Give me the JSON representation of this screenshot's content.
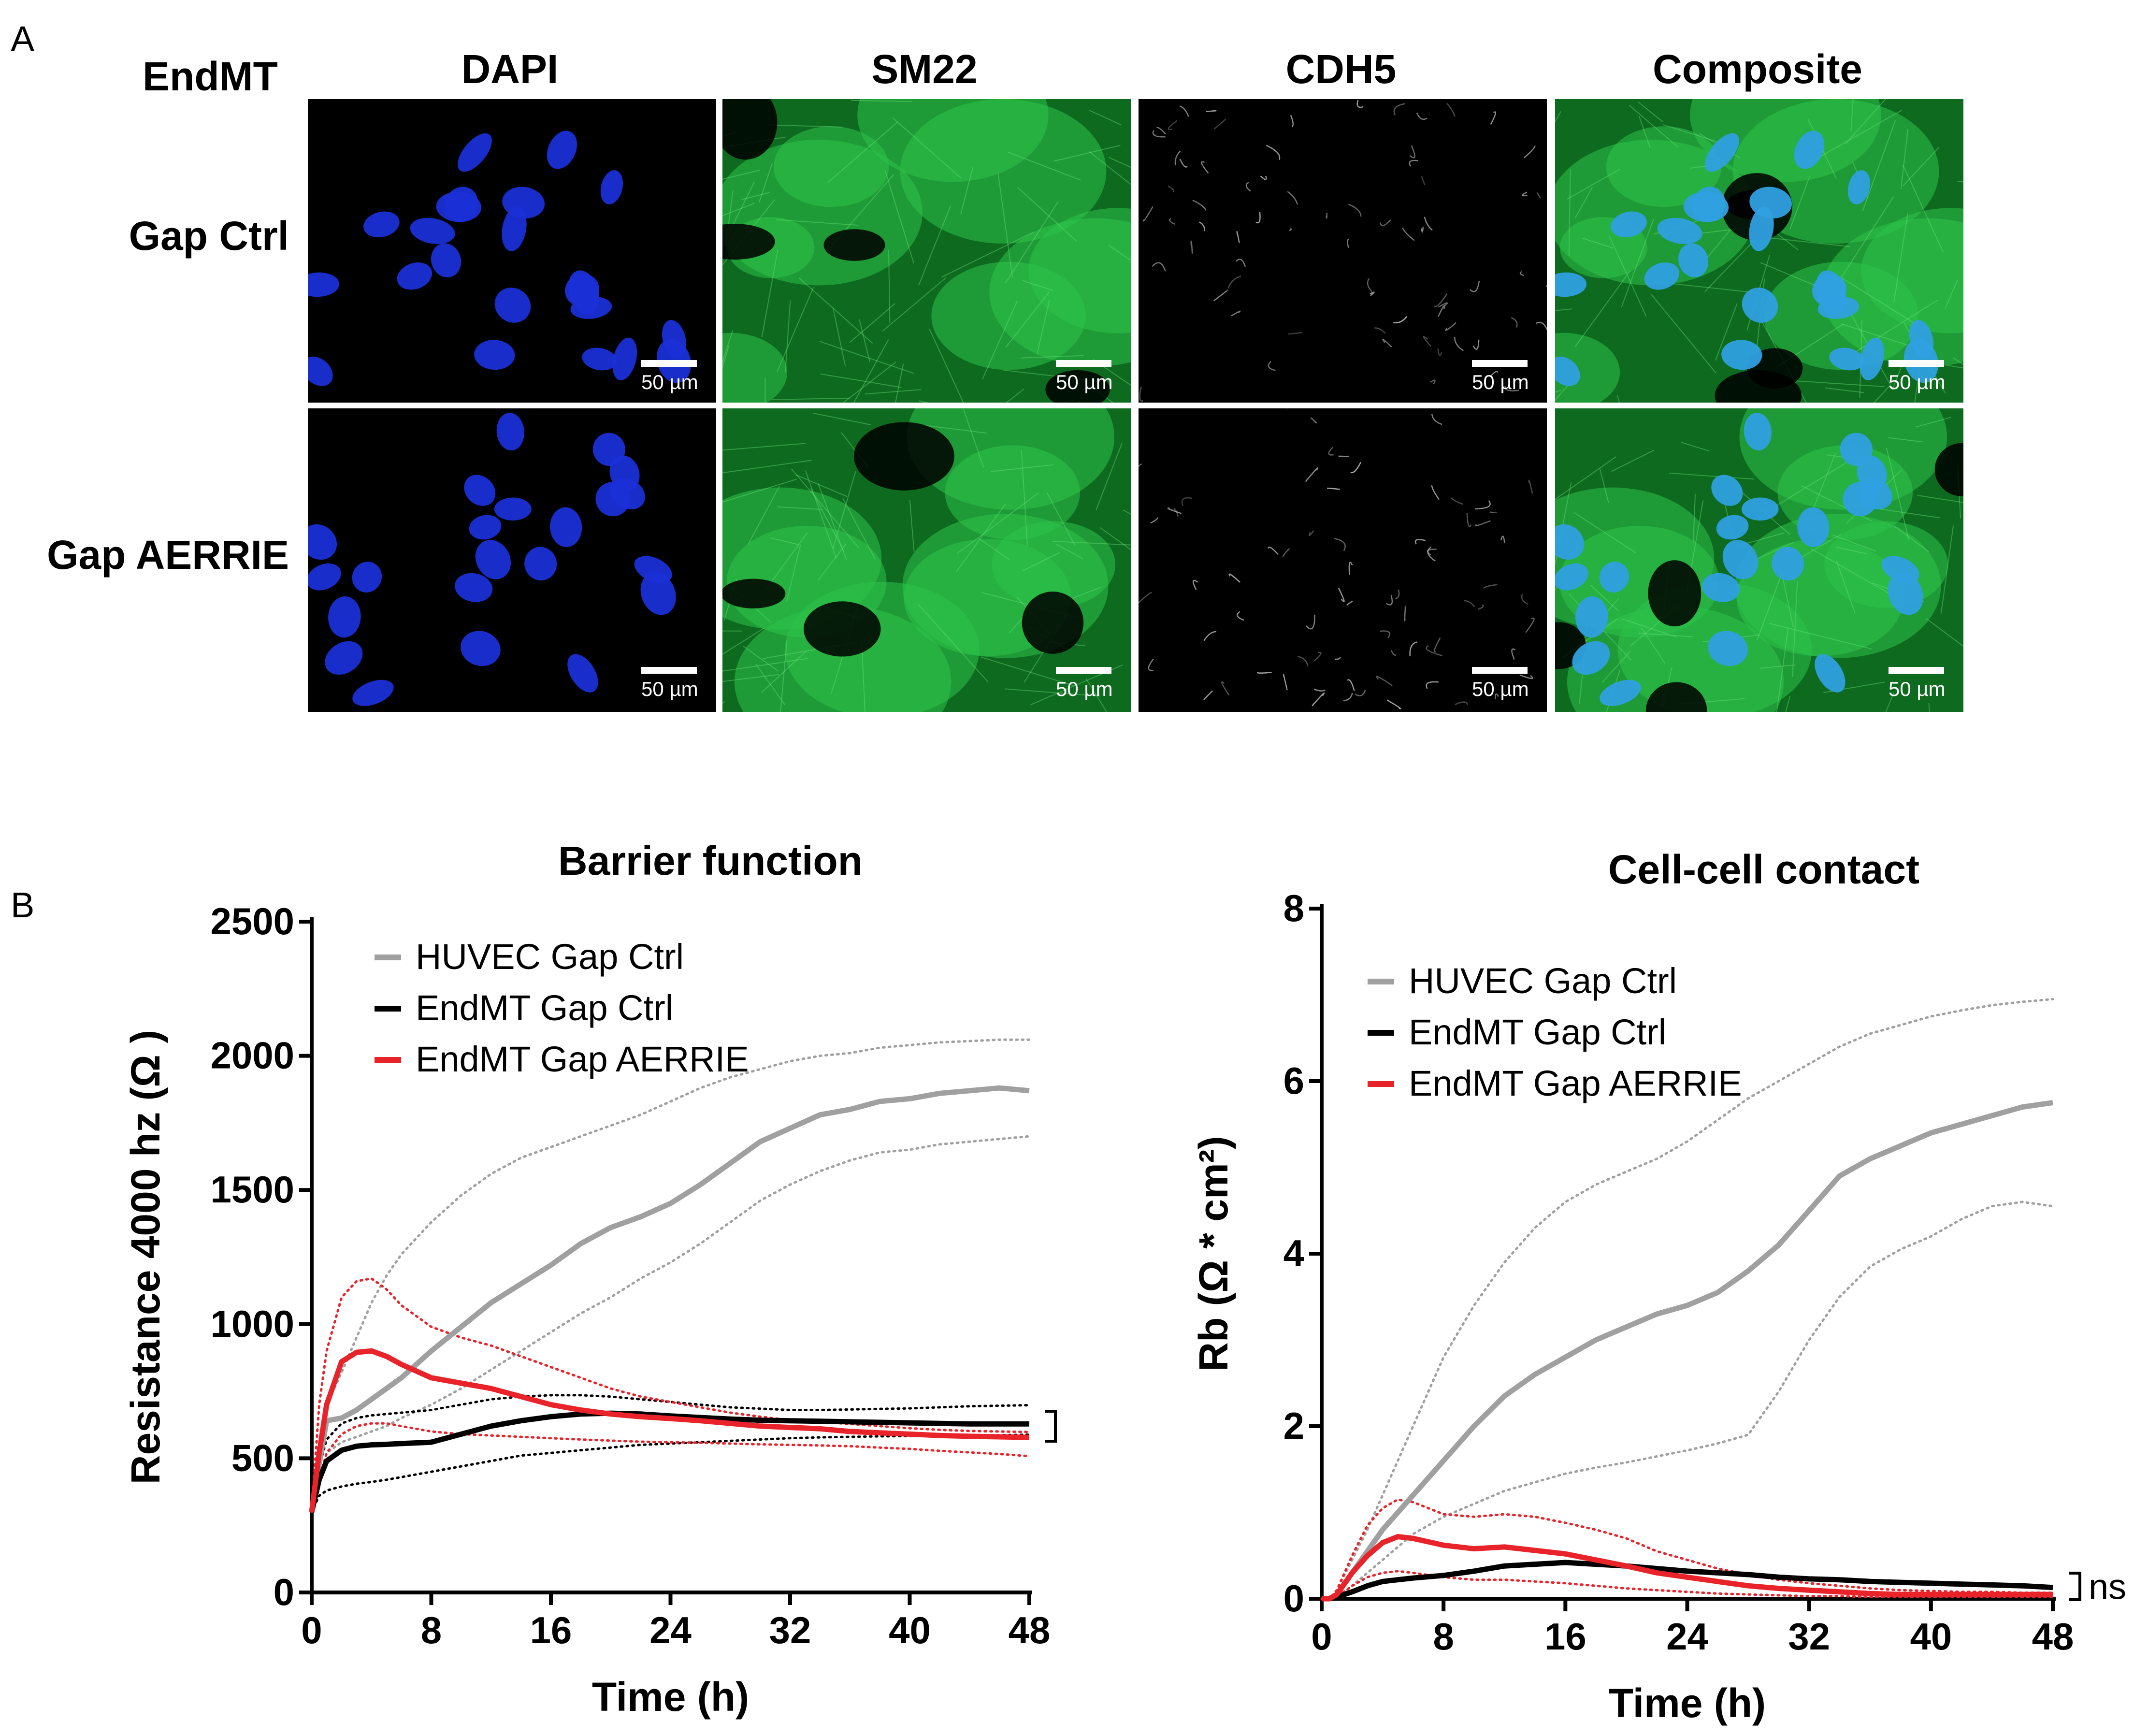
{
  "panel_a": {
    "letter": "A",
    "group_label": "EndMT",
    "columns": [
      "DAPI",
      "SM22",
      "CDH5",
      "Composite"
    ],
    "rows": [
      "Gap Ctrl",
      "Gap AERRIE"
    ],
    "scale_bar_label": "50 µm",
    "channel_colors": {
      "DAPI": "#1a2fd6",
      "SM22": "#1fb83a",
      "CDH5": "#cfcfcf",
      "Composite": "#2fa0e0"
    }
  },
  "panel_b": {
    "letter": "B"
  },
  "chart_data": [
    {
      "type": "line",
      "title": "Barrier function",
      "xlabel": "Time (h)",
      "ylabel": "Resistance 4000 hz (Ω )",
      "xlim": [
        0,
        48
      ],
      "ylim": [
        0,
        2500
      ],
      "xticks": [
        0,
        8,
        16,
        24,
        32,
        40,
        48
      ],
      "yticks": [
        0,
        500,
        1000,
        1500,
        2000,
        2500
      ],
      "legend_position": "top-left",
      "annotation": "ns",
      "x": [
        0,
        0.5,
        1,
        2,
        3,
        4,
        5,
        6,
        8,
        10,
        12,
        14,
        16,
        18,
        20,
        22,
        24,
        26,
        28,
        30,
        32,
        34,
        36,
        38,
        40,
        42,
        44,
        46,
        48
      ],
      "series": [
        {
          "name": "HUVEC Gap Ctrl",
          "color": "#a0a0a0",
          "values": [
            300,
            480,
            640,
            650,
            680,
            720,
            760,
            800,
            900,
            990,
            1080,
            1150,
            1220,
            1300,
            1360,
            1400,
            1450,
            1520,
            1600,
            1680,
            1730,
            1780,
            1800,
            1830,
            1840,
            1860,
            1870,
            1880,
            1870
          ],
          "upper": [
            300,
            550,
            700,
            820,
            950,
            1080,
            1180,
            1260,
            1380,
            1480,
            1560,
            1620,
            1660,
            1700,
            1740,
            1780,
            1830,
            1880,
            1920,
            1950,
            1980,
            2000,
            2010,
            2030,
            2040,
            2050,
            2055,
            2060,
            2060
          ],
          "lower": [
            300,
            420,
            520,
            560,
            580,
            600,
            620,
            650,
            700,
            760,
            830,
            900,
            970,
            1040,
            1100,
            1170,
            1230,
            1300,
            1380,
            1460,
            1520,
            1570,
            1610,
            1640,
            1650,
            1670,
            1680,
            1690,
            1700
          ]
        },
        {
          "name": "EndMT Gap Ctrl",
          "color": "#000000",
          "values": [
            300,
            420,
            490,
            530,
            545,
            550,
            552,
            555,
            560,
            590,
            620,
            640,
            655,
            665,
            668,
            665,
            658,
            652,
            646,
            642,
            640,
            638,
            636,
            634,
            632,
            630,
            628,
            628,
            628
          ],
          "upper": [
            300,
            470,
            570,
            630,
            650,
            660,
            665,
            670,
            680,
            700,
            720,
            730,
            735,
            735,
            730,
            720,
            710,
            700,
            690,
            685,
            680,
            680,
            682,
            684,
            686,
            690,
            694,
            696,
            698
          ],
          "lower": [
            300,
            360,
            380,
            395,
            405,
            412,
            420,
            430,
            450,
            470,
            490,
            510,
            520,
            530,
            540,
            550,
            555,
            560,
            565,
            570,
            575,
            578,
            580,
            582,
            583,
            584,
            585,
            586,
            588
          ]
        },
        {
          "name": "EndMT Gap AERRIE",
          "color": "#e8232a",
          "values": [
            300,
            520,
            700,
            860,
            895,
            900,
            880,
            850,
            800,
            780,
            760,
            730,
            700,
            680,
            665,
            655,
            648,
            640,
            630,
            620,
            615,
            610,
            600,
            595,
            590,
            585,
            582,
            580,
            578
          ],
          "upper": [
            300,
            700,
            900,
            1100,
            1160,
            1170,
            1130,
            1070,
            990,
            950,
            920,
            880,
            840,
            800,
            760,
            730,
            710,
            690,
            670,
            655,
            642,
            635,
            628,
            620,
            612,
            606,
            602,
            600,
            598
          ],
          "lower": [
            300,
            420,
            520,
            590,
            620,
            630,
            630,
            620,
            600,
            590,
            585,
            580,
            575,
            570,
            566,
            562,
            560,
            558,
            555,
            552,
            550,
            548,
            545,
            540,
            535,
            528,
            522,
            516,
            508
          ]
        }
      ]
    },
    {
      "type": "line",
      "title": "Cell-cell contact",
      "xlabel": "Time (h)",
      "ylabel": "Rb (Ω * cm²)",
      "xlim": [
        0,
        48
      ],
      "ylim": [
        0,
        8
      ],
      "xticks": [
        0,
        8,
        16,
        24,
        32,
        40,
        48
      ],
      "yticks": [
        0,
        2,
        4,
        6,
        8
      ],
      "legend_position": "top-left",
      "annotation": "ns",
      "x": [
        0,
        0.5,
        1,
        2,
        3,
        4,
        5,
        6,
        8,
        10,
        12,
        14,
        16,
        18,
        20,
        22,
        24,
        26,
        28,
        30,
        32,
        34,
        36,
        38,
        40,
        42,
        44,
        46,
        48
      ],
      "series": [
        {
          "name": "HUVEC Gap Ctrl",
          "color": "#a0a0a0",
          "values": [
            0,
            0,
            0.05,
            0.3,
            0.55,
            0.8,
            1.0,
            1.2,
            1.6,
            2.0,
            2.35,
            2.6,
            2.8,
            3.0,
            3.15,
            3.3,
            3.4,
            3.55,
            3.8,
            4.1,
            4.5,
            4.9,
            5.1,
            5.25,
            5.4,
            5.5,
            5.6,
            5.7,
            5.75
          ],
          "upper": [
            0,
            0,
            0.1,
            0.45,
            0.8,
            1.2,
            1.6,
            2.0,
            2.8,
            3.4,
            3.9,
            4.3,
            4.6,
            4.8,
            4.95,
            5.1,
            5.3,
            5.55,
            5.8,
            6.0,
            6.2,
            6.4,
            6.55,
            6.65,
            6.75,
            6.82,
            6.88,
            6.92,
            6.95
          ],
          "lower": [
            0,
            0,
            0.0,
            0.15,
            0.3,
            0.45,
            0.6,
            0.75,
            0.95,
            1.1,
            1.25,
            1.35,
            1.45,
            1.52,
            1.58,
            1.65,
            1.72,
            1.8,
            1.9,
            2.4,
            3.0,
            3.5,
            3.85,
            4.05,
            4.2,
            4.4,
            4.55,
            4.6,
            4.55
          ]
        },
        {
          "name": "EndMT Gap Ctrl",
          "color": "#000000",
          "values": [
            0,
            0,
            0.02,
            0.08,
            0.15,
            0.2,
            0.22,
            0.24,
            0.27,
            0.32,
            0.38,
            0.4,
            0.42,
            0.4,
            0.38,
            0.35,
            0.32,
            0.3,
            0.28,
            0.25,
            0.23,
            0.22,
            0.2,
            0.19,
            0.18,
            0.17,
            0.16,
            0.15,
            0.13
          ]
        },
        {
          "name": "EndMT Gap AERRIE",
          "color": "#e8232a",
          "values": [
            0,
            0,
            0.05,
            0.3,
            0.5,
            0.65,
            0.72,
            0.7,
            0.62,
            0.58,
            0.6,
            0.56,
            0.52,
            0.45,
            0.38,
            0.3,
            0.25,
            0.2,
            0.15,
            0.12,
            0.1,
            0.08,
            0.06,
            0.05,
            0.05,
            0.05,
            0.05,
            0.05,
            0.05
          ],
          "upper": [
            0,
            0,
            0.1,
            0.5,
            0.85,
            1.05,
            1.15,
            1.12,
            0.98,
            0.95,
            0.98,
            0.95,
            0.88,
            0.8,
            0.7,
            0.55,
            0.45,
            0.35,
            0.28,
            0.22,
            0.18,
            0.15,
            0.12,
            0.1,
            0.09,
            0.08,
            0.08,
            0.07,
            0.07
          ],
          "lower": [
            0,
            0,
            0.02,
            0.15,
            0.25,
            0.3,
            0.32,
            0.3,
            0.25,
            0.22,
            0.22,
            0.2,
            0.18,
            0.15,
            0.12,
            0.1,
            0.08,
            0.06,
            0.05,
            0.04,
            0.03,
            0.03,
            0.02,
            0.02,
            0.02,
            0.02,
            0.02,
            0.02,
            0.02
          ]
        }
      ]
    }
  ]
}
